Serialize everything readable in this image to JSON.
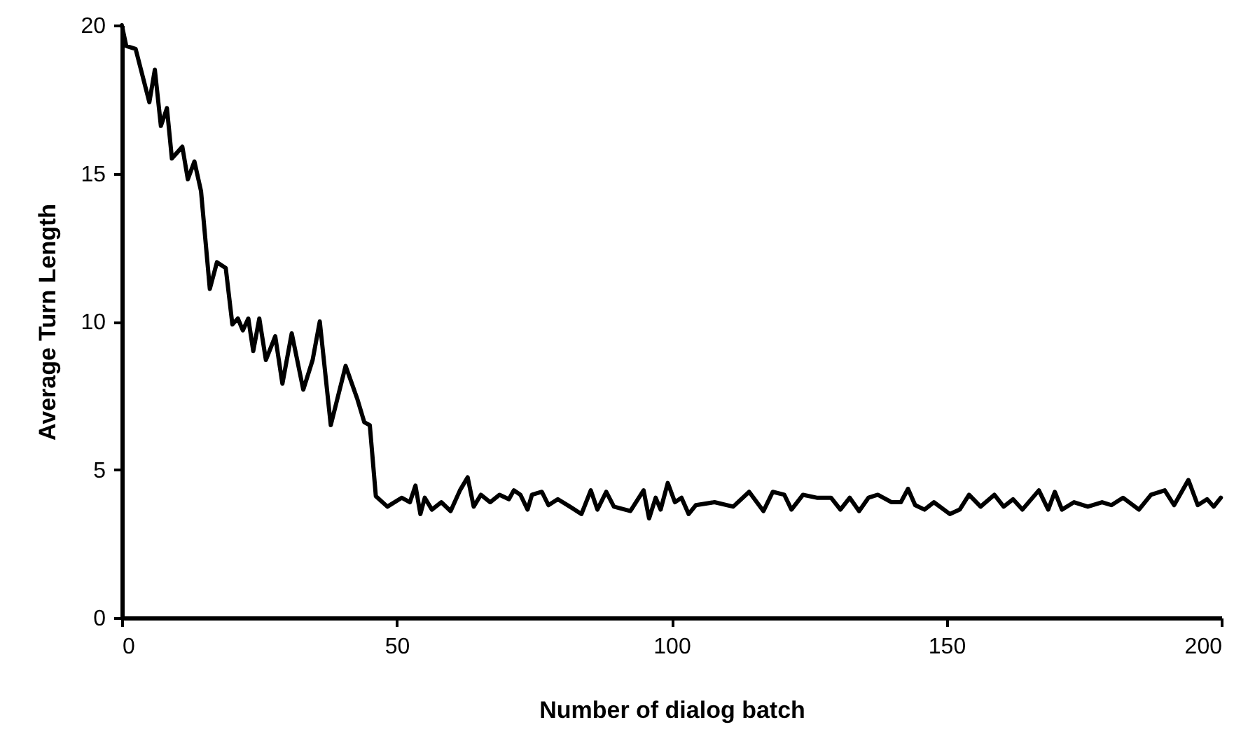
{
  "chart_data": {
    "type": "line",
    "xlabel": "Number of dialog batch",
    "ylabel": "Average Turn Length",
    "xlim": [
      0,
      200
    ],
    "xticks": [
      0,
      50,
      100,
      150,
      200
    ],
    "ylim": [
      0,
      20
    ],
    "yticks": [
      0,
      5,
      10,
      15,
      20
    ],
    "grid": false,
    "marker": "none",
    "line_style": "solid",
    "series": [
      {
        "color": "#000000",
        "x": [
          0,
          0.8,
          2.5,
          5,
          6,
          7.1,
          8.2,
          9.1,
          11,
          12,
          13.2,
          14.4,
          16,
          17.3,
          18.9,
          20.1,
          21.1,
          22,
          23,
          23.9,
          25,
          26.2,
          27.9,
          29.2,
          30.9,
          33,
          34.7,
          36,
          38,
          40.7,
          42.8,
          44.1,
          45.1,
          46.2,
          48.3,
          50.9,
          52.4,
          53.4,
          54.3,
          55.1,
          56.4,
          58.1,
          59.8,
          61.5,
          62.9,
          64,
          65.3,
          67,
          68.7,
          70.4,
          71.3,
          72.5,
          73.8,
          74.6,
          76.4,
          77.6,
          79.3,
          81.5,
          83.6,
          85.3,
          86.5,
          88.1,
          89.5,
          92.5,
          94.9,
          95.9,
          97.1,
          98,
          99.3,
          100.6,
          101.8,
          103.1,
          104.4,
          107.8,
          111.2,
          114.1,
          116.7,
          118.4,
          120.5,
          121.8,
          123.9,
          126.4,
          129,
          130.7,
          132.4,
          134.1,
          135.8,
          137.5,
          140,
          141.7,
          143,
          144.3,
          146,
          147.7,
          150.6,
          152.4,
          154.1,
          156.2,
          158.7,
          160.4,
          162.1,
          163.8,
          166.8,
          168.5,
          169.7,
          171,
          173.2,
          175.7,
          178.3,
          180,
          182.1,
          185,
          187.2,
          189.7,
          191.4,
          194,
          195.7,
          197.4,
          198.6,
          199.9
        ],
        "values": [
          20,
          19.3,
          19.2,
          17.4,
          18.5,
          16.6,
          17.2,
          15.5,
          15.9,
          14.8,
          15.4,
          14.4,
          11.1,
          12,
          11.8,
          9.9,
          10.1,
          9.7,
          10.1,
          9,
          10.1,
          8.7,
          9.5,
          7.9,
          9.6,
          7.7,
          8.7,
          10,
          6.5,
          8.5,
          7.4,
          6.6,
          6.5,
          4.1,
          3.75,
          4.05,
          3.9,
          4.46,
          3.5,
          4.05,
          3.65,
          3.9,
          3.6,
          4.3,
          4.74,
          3.75,
          4.15,
          3.9,
          4.15,
          4,
          4.3,
          4.15,
          3.65,
          4.15,
          4.25,
          3.8,
          4,
          3.75,
          3.5,
          4.3,
          3.65,
          4.25,
          3.75,
          3.6,
          4.3,
          3.35,
          4.05,
          3.65,
          4.55,
          3.9,
          4.05,
          3.5,
          3.8,
          3.9,
          3.75,
          4.25,
          3.6,
          4.25,
          4.15,
          3.65,
          4.15,
          4.05,
          4.05,
          3.65,
          4.05,
          3.6,
          4.05,
          4.15,
          3.9,
          3.9,
          4.35,
          3.8,
          3.65,
          3.9,
          3.5,
          3.65,
          4.15,
          3.75,
          4.15,
          3.75,
          4,
          3.65,
          4.3,
          3.65,
          4.25,
          3.65,
          3.9,
          3.75,
          3.9,
          3.8,
          4.05,
          3.65,
          4.15,
          4.3,
          3.8,
          4.65,
          3.8,
          4,
          3.75,
          4.05
        ]
      }
    ]
  }
}
